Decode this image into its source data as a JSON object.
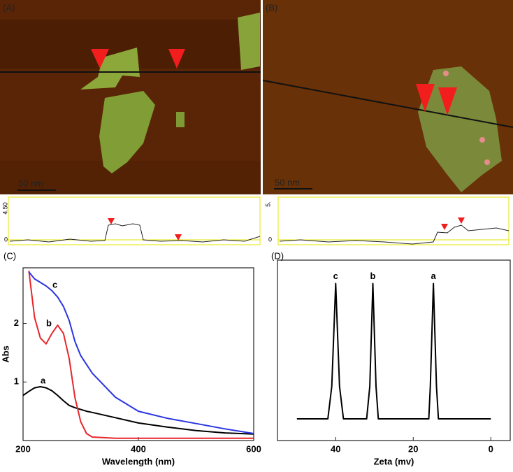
{
  "panels": [
    {
      "label": "(A)",
      "scale_bar": "50 nm",
      "profile_ticks": [
        "4.50",
        "0"
      ]
    },
    {
      "label": "(B)",
      "scale_bar": "50 nm",
      "profile_ticks": [
        "5.",
        "0"
      ]
    }
  ],
  "chart_data": [
    {
      "type": "line",
      "label": "(C)",
      "xlabel": "Wavelength (nm)",
      "ylabel": "Abs",
      "x": [
        200,
        210,
        220,
        230,
        240,
        250,
        260,
        270,
        280,
        290,
        300,
        310,
        320,
        360,
        400,
        450,
        500,
        550,
        600
      ],
      "series": [
        {
          "name": "a",
          "color": "#000000",
          "values": [
            0.77,
            0.84,
            0.9,
            0.92,
            0.9,
            0.85,
            0.77,
            0.68,
            0.6,
            0.56,
            0.53,
            0.5,
            0.48,
            0.39,
            0.3,
            0.23,
            0.17,
            0.13,
            0.11
          ]
        },
        {
          "name": "b",
          "color": "#e8262b",
          "values": [
            null,
            2.9,
            2.1,
            1.75,
            1.65,
            1.83,
            1.97,
            1.83,
            1.4,
            0.73,
            0.32,
            0.12,
            0.06,
            0.04,
            0.04,
            0.04,
            0.04,
            0.04,
            0.04
          ]
        },
        {
          "name": "c",
          "color": "#2b35e0",
          "values": [
            null,
            2.88,
            2.76,
            2.7,
            2.64,
            2.56,
            2.45,
            2.29,
            2.05,
            1.69,
            1.45,
            1.3,
            1.15,
            0.74,
            0.5,
            0.38,
            0.29,
            0.2,
            0.12
          ]
        }
      ],
      "xlim": [
        200,
        600
      ],
      "xticks": [
        200,
        400,
        600
      ],
      "ylim": [
        0,
        2.95
      ],
      "yticks": [
        1,
        2
      ]
    },
    {
      "type": "line",
      "label": "(D)",
      "xlabel": "Zeta (mv)",
      "x": [
        50,
        42,
        41,
        40,
        39,
        38,
        32,
        31.2,
        30.4,
        29.6,
        29,
        16,
        15.6,
        14.8,
        14,
        13.5,
        0
      ],
      "series": [
        {
          "color": "#000000",
          "values": [
            0.12,
            0.12,
            0.3,
            0.87,
            0.3,
            0.12,
            0.12,
            0.3,
            0.87,
            0.3,
            0.12,
            0.12,
            0.3,
            0.87,
            0.3,
            0.12,
            0.12
          ]
        }
      ],
      "peak_labels": [
        "c",
        "b",
        "a"
      ],
      "xlim": [
        55,
        -5
      ],
      "xticks": [
        40,
        20,
        0
      ],
      "ylim": [
        0,
        1
      ]
    }
  ]
}
